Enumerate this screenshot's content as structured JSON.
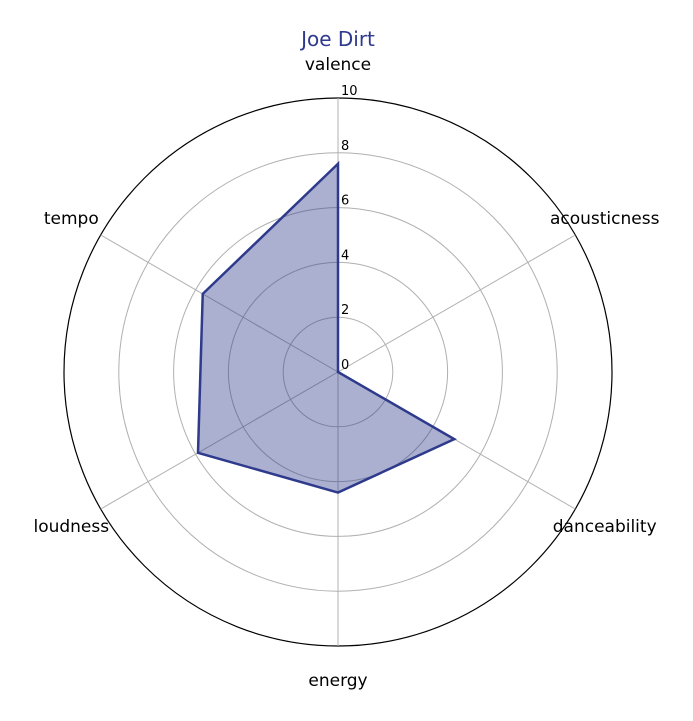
{
  "chart_data": {
    "type": "radar",
    "title": "Joe Dirt",
    "axes": [
      "valence",
      "acousticness",
      "danceability",
      "energy",
      "loudness",
      "tempo"
    ],
    "series": [
      {
        "values": [
          7.6,
          0.0,
          4.9,
          4.4,
          5.9,
          5.7
        ]
      }
    ],
    "rlim": [
      0,
      10
    ],
    "rticks": [
      "0",
      "2",
      "4",
      "6",
      "8",
      "10"
    ],
    "grid": true,
    "colors": {
      "line": "#2e3a8c",
      "fill": "#2e3a8c",
      "title": "#2e3a8c",
      "grid": "#b0b0b0",
      "outer": "#000000"
    }
  }
}
